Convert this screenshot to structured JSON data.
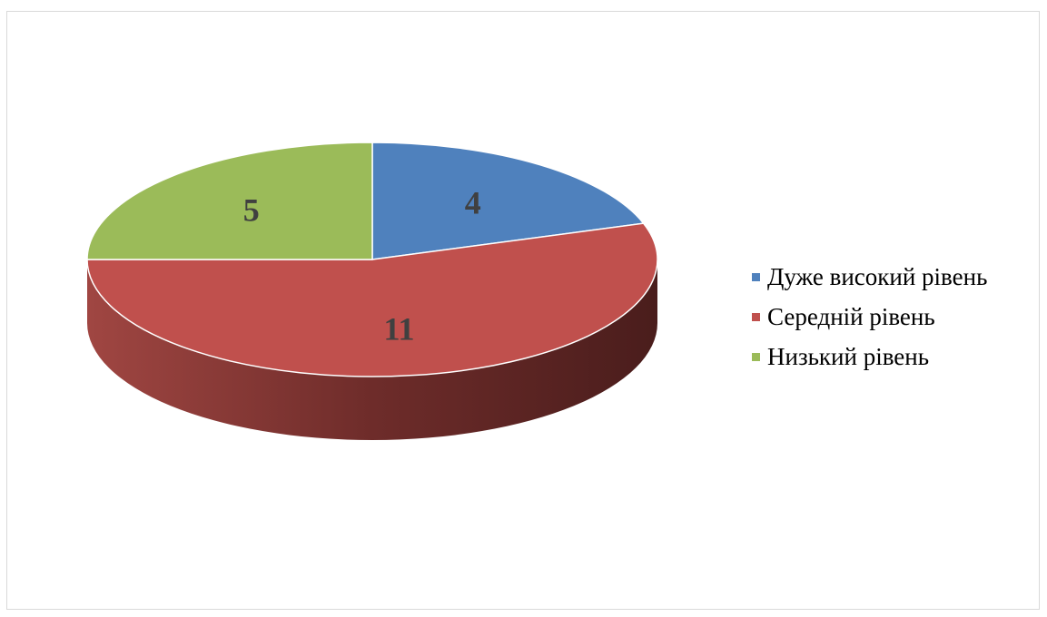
{
  "chart_data": {
    "type": "pie",
    "style": "3d",
    "title": "",
    "categories": [
      "Дуже високий рівень",
      "Середній рівень",
      "Низький рівень"
    ],
    "values": [
      4,
      11,
      5
    ],
    "data_labels": [
      "4",
      "11",
      "5"
    ],
    "colors": [
      "#4f81bd",
      "#c0504d",
      "#9bbb59"
    ],
    "legend_position": "right"
  }
}
